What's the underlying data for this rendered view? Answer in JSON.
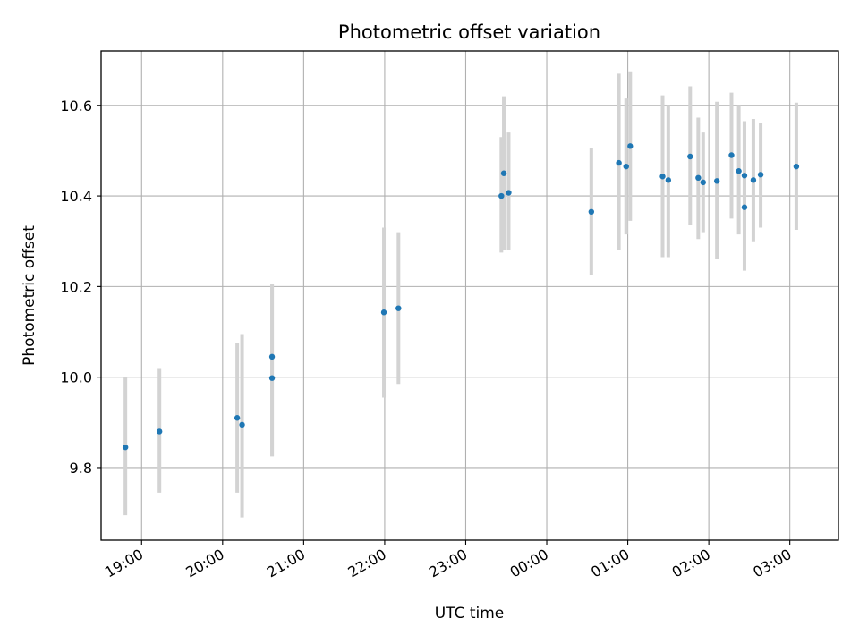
{
  "chart_data": {
    "type": "scatter",
    "title": "Photometric offset variation",
    "xlabel": "UTC time",
    "ylabel": "Photometric offset",
    "xlim_hours": [
      18.5,
      27.6
    ],
    "ylim": [
      9.64,
      10.72
    ],
    "grid": true,
    "x_tick_labels": [
      "19:00",
      "20:00",
      "21:00",
      "22:00",
      "23:00",
      "00:00",
      "01:00",
      "02:00",
      "03:00"
    ],
    "x_tick_hours": [
      19,
      20,
      21,
      22,
      23,
      24,
      25,
      26,
      27
    ],
    "y_tick_labels": [
      "9.8",
      "10.0",
      "10.2",
      "10.4",
      "10.6"
    ],
    "y_ticks": [
      9.8,
      10.0,
      10.2,
      10.4,
      10.6
    ],
    "marker_color": "#1f77b4",
    "errorbar_color": "#d3d3d3",
    "series": [
      {
        "name": "Photometric offset",
        "points": [
          {
            "t": 18.8,
            "y": 9.845,
            "err_low": 9.695,
            "err_high": 10.0
          },
          {
            "t": 19.22,
            "y": 9.88,
            "err_low": 9.745,
            "err_high": 10.02
          },
          {
            "t": 20.18,
            "y": 9.91,
            "err_low": 9.745,
            "err_high": 10.075
          },
          {
            "t": 20.24,
            "y": 9.895,
            "err_low": 9.69,
            "err_high": 10.095
          },
          {
            "t": 20.61,
            "y": 10.045,
            "err_low": 9.825,
            "err_high": 10.205
          },
          {
            "t": 20.61,
            "y": 9.998,
            "err_low": 9.825,
            "err_high": 10.205
          },
          {
            "t": 21.99,
            "y": 10.143,
            "err_low": 9.955,
            "err_high": 10.33
          },
          {
            "t": 22.17,
            "y": 10.152,
            "err_low": 9.985,
            "err_high": 10.32
          },
          {
            "t": 23.44,
            "y": 10.4,
            "err_low": 10.275,
            "err_high": 10.53
          },
          {
            "t": 23.47,
            "y": 10.45,
            "err_low": 10.28,
            "err_high": 10.62
          },
          {
            "t": 23.53,
            "y": 10.407,
            "err_low": 10.28,
            "err_high": 10.54
          },
          {
            "t": 24.55,
            "y": 10.365,
            "err_low": 10.225,
            "err_high": 10.505
          },
          {
            "t": 24.89,
            "y": 10.473,
            "err_low": 10.28,
            "err_high": 10.67
          },
          {
            "t": 24.98,
            "y": 10.465,
            "err_low": 10.315,
            "err_high": 10.615
          },
          {
            "t": 25.03,
            "y": 10.51,
            "err_low": 10.345,
            "err_high": 10.675
          },
          {
            "t": 25.43,
            "y": 10.443,
            "err_low": 10.265,
            "err_high": 10.622
          },
          {
            "t": 25.5,
            "y": 10.435,
            "err_low": 10.265,
            "err_high": 10.6
          },
          {
            "t": 25.77,
            "y": 10.487,
            "err_low": 10.335,
            "err_high": 10.642
          },
          {
            "t": 25.87,
            "y": 10.44,
            "err_low": 10.305,
            "err_high": 10.573
          },
          {
            "t": 25.93,
            "y": 10.43,
            "err_low": 10.32,
            "err_high": 10.54
          },
          {
            "t": 26.1,
            "y": 10.433,
            "err_low": 10.26,
            "err_high": 10.608
          },
          {
            "t": 26.28,
            "y": 10.49,
            "err_low": 10.35,
            "err_high": 10.628
          },
          {
            "t": 26.37,
            "y": 10.455,
            "err_low": 10.315,
            "err_high": 10.6
          },
          {
            "t": 26.44,
            "y": 10.445,
            "err_low": 10.325,
            "err_high": 10.565
          },
          {
            "t": 26.44,
            "y": 10.375,
            "err_low": 10.235,
            "err_high": 10.565
          },
          {
            "t": 26.55,
            "y": 10.435,
            "err_low": 10.3,
            "err_high": 10.57
          },
          {
            "t": 26.64,
            "y": 10.447,
            "err_low": 10.33,
            "err_high": 10.562
          },
          {
            "t": 27.08,
            "y": 10.465,
            "err_low": 10.325,
            "err_high": 10.606
          }
        ]
      }
    ]
  }
}
